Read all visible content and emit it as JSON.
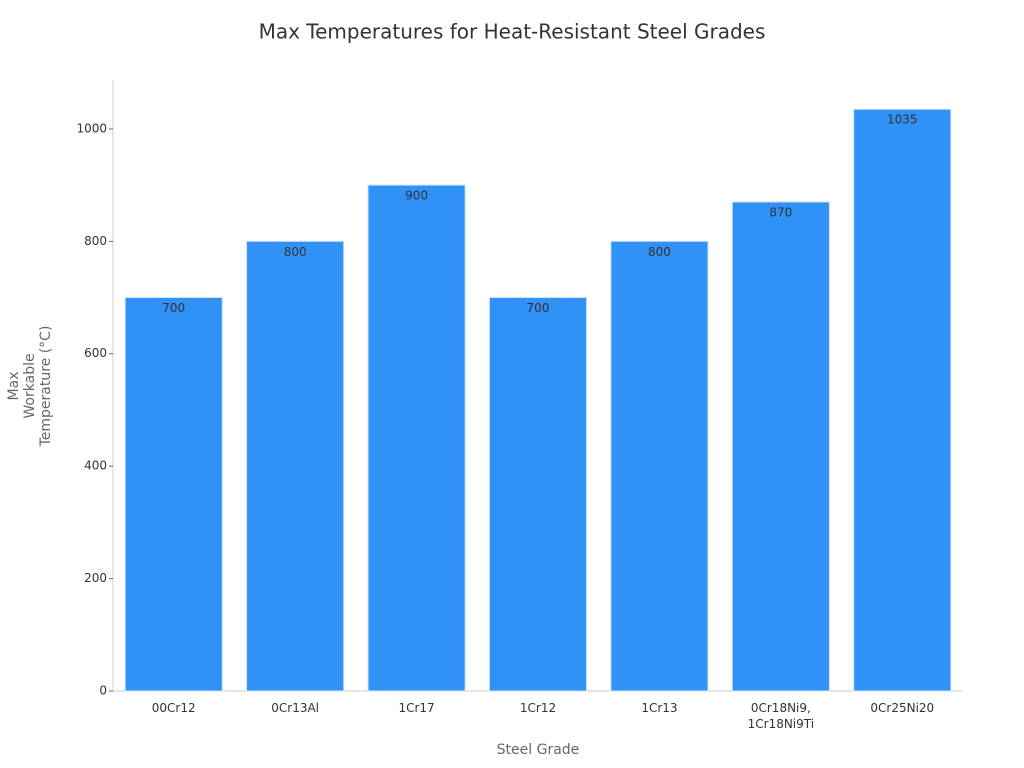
{
  "chart_data": {
    "type": "bar",
    "title": "Max Temperatures for Heat-Resistant Steel Grades",
    "x_label": "Steel Grade",
    "y_label": "Max\nWorkable\nTemperature (°C)",
    "categories": [
      "00Cr12",
      "0Cr13Al",
      "1Cr17",
      "1Cr12",
      "1Cr13",
      "0Cr18Ni9,\n1Cr18Ni9Ti",
      "0Cr25Ni20"
    ],
    "values": [
      700,
      800,
      900,
      700,
      800,
      870,
      1035
    ],
    "color": "#3091f7",
    "ylim": [
      0,
      1087
    ],
    "yticks": [
      0,
      200,
      400,
      600,
      800,
      1000
    ],
    "grid": false
  }
}
